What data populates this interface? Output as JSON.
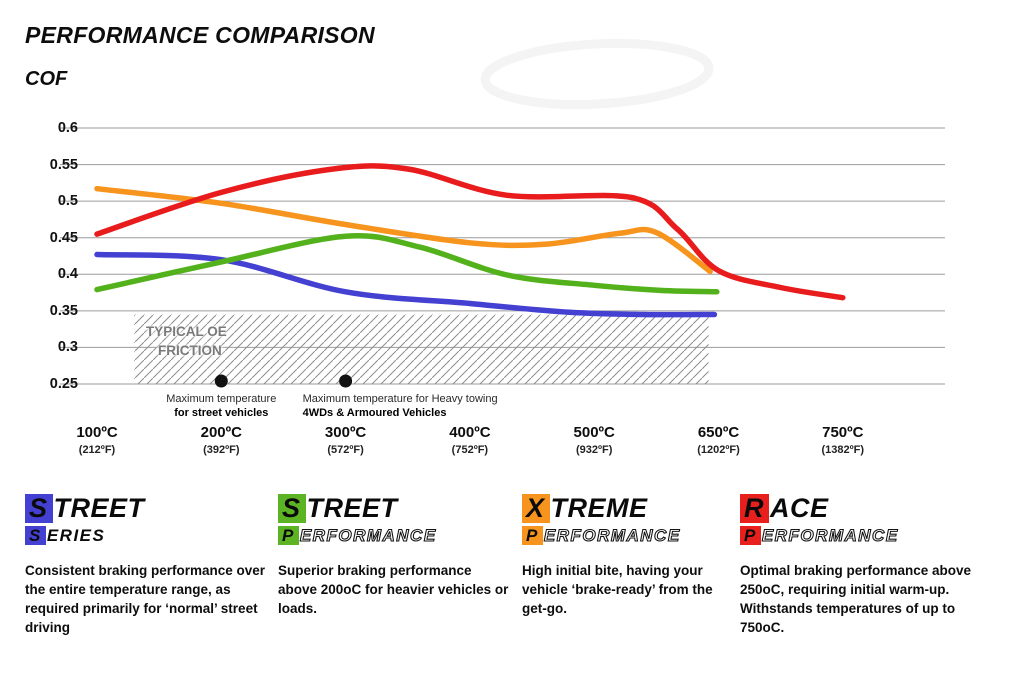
{
  "page": {
    "title": "PERFORMANCE COMPARISON",
    "subtitle": "COF"
  },
  "chart_data": {
    "type": "line",
    "title": "PERFORMANCE COMPARISON",
    "ylabel": "COF",
    "ylim": [
      0.25,
      0.6
    ],
    "yticks": [
      0.6,
      0.55,
      0.5,
      0.45,
      0.4,
      0.35,
      0.3,
      0.25
    ],
    "grid": true,
    "x_tick_values": [
      100,
      200,
      300,
      400,
      500,
      650,
      750
    ],
    "categories_c": [
      "100ºC",
      "200ºC",
      "300ºC",
      "400ºC",
      "500ºC",
      "650ºC",
      "750ºC"
    ],
    "categories_f": [
      "(212ºF)",
      "(392ºF)",
      "(572ºF)",
      "(752ºF)",
      "(932ºF)",
      "(1202ºF)",
      "(1382ºF)"
    ],
    "series": [
      {
        "id": "street-series",
        "name": "Street Series",
        "color": "#4340d2",
        "points": [
          [
            100,
            0.427
          ],
          [
            200,
            0.42
          ],
          [
            300,
            0.376
          ],
          [
            400,
            0.36
          ],
          [
            480,
            0.348
          ],
          [
            560,
            0.345
          ],
          [
            645,
            0.345
          ]
        ]
      },
      {
        "id": "street-performance",
        "name": "Street Performance",
        "color": "#53b11c",
        "points": [
          [
            100,
            0.379
          ],
          [
            200,
            0.417
          ],
          [
            300,
            0.452
          ],
          [
            360,
            0.437
          ],
          [
            430,
            0.399
          ],
          [
            500,
            0.385
          ],
          [
            580,
            0.378
          ],
          [
            648,
            0.376
          ]
        ]
      },
      {
        "id": "xtreme-performance",
        "name": "Xtreme Performance",
        "color": "#f7941d",
        "points": [
          [
            100,
            0.517
          ],
          [
            200,
            0.497
          ],
          [
            300,
            0.468
          ],
          [
            400,
            0.443
          ],
          [
            460,
            0.441
          ],
          [
            530,
            0.456
          ],
          [
            575,
            0.457
          ],
          [
            640,
            0.404
          ]
        ]
      },
      {
        "id": "race-performance",
        "name": "Race Performance",
        "color": "#e81c1c",
        "points": [
          [
            100,
            0.455
          ],
          [
            200,
            0.512
          ],
          [
            290,
            0.544
          ],
          [
            350,
            0.544
          ],
          [
            430,
            0.508
          ],
          [
            545,
            0.505
          ],
          [
            600,
            0.462
          ],
          [
            650,
            0.405
          ],
          [
            700,
            0.382
          ],
          [
            750,
            0.368
          ]
        ]
      }
    ],
    "oe_band": {
      "label_line1": "TYPICAL OE",
      "label_line2": "FRICTION",
      "ymin": 0.25,
      "ymax": 0.345,
      "xmin_c": 130,
      "xmax_c": 638
    },
    "annotations": [
      {
        "x_c": 200,
        "align": "center",
        "line1": "Maximum temperature",
        "line2": "for street vehicles"
      },
      {
        "x_c": 300,
        "align": "left",
        "line1": "Maximum temperature for Heavy towing",
        "line2": "4WDs & Armoured Vehicles"
      }
    ]
  },
  "legend": [
    {
      "id": "street-series",
      "color": "#4340d2",
      "line1_initial": "S",
      "line1_rest": "TREET",
      "line2_initial": "S",
      "line2_rest": "ERIES",
      "line2_outline": false,
      "description": "Consistent braking performance over the entire temperature range, as required primarily for ‘normal’ street driving"
    },
    {
      "id": "street-performance",
      "color": "#5cb424",
      "line1_initial": "S",
      "line1_rest": "TREET",
      "line2_initial": "P",
      "line2_rest": "ERFORMANCE",
      "line2_outline": true,
      "description": "Superior braking performance above 200oC for heavier vehicles or loads."
    },
    {
      "id": "xtreme-performance",
      "color": "#f7941d",
      "line1_initial": "X",
      "line1_rest": "TREME",
      "line2_initial": "P",
      "line2_rest": "ERFORMANCE",
      "line2_outline": true,
      "description": "High initial bite, having your vehicle ‘brake-ready’ from the get-go."
    },
    {
      "id": "race-performance",
      "color": "#e8201d",
      "line1_initial": "R",
      "line1_rest": "ACE",
      "line2_initial": "P",
      "line2_rest": "ERFORMANCE",
      "line2_outline": true,
      "description": "Optimal braking performance above 250oC, requiring initial warm-up. Withstands temperatures of up to 750oC."
    }
  ]
}
